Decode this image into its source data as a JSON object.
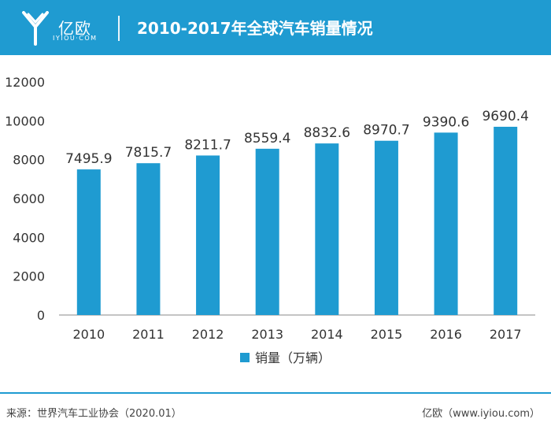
{
  "header": {
    "logo_text": "亿欧",
    "logo_domain": "IYIOU·COM",
    "title": "2010-2017年全球汽车销量情况",
    "brand_color": "#1f9bd1"
  },
  "footer": {
    "source": "来源：世界汽车工业协会（2020.01）",
    "site": "亿欧（www.iyiou.com）"
  },
  "chart_data": {
    "type": "bar",
    "categories": [
      "2010",
      "2011",
      "2012",
      "2013",
      "2014",
      "2015",
      "2016",
      "2017"
    ],
    "series": [
      {
        "name": "销量（万辆）",
        "values": [
          7495.9,
          7815.7,
          8211.7,
          8559.4,
          8832.6,
          8970.7,
          9390.6,
          9690.4
        ],
        "color": "#1f9bd1"
      }
    ],
    "yticks": [
      "0",
      "2000",
      "4000",
      "6000",
      "8000",
      "10000",
      "12000"
    ],
    "ylim": [
      0,
      12000
    ],
    "legend_position": "bottom",
    "grid": false
  }
}
